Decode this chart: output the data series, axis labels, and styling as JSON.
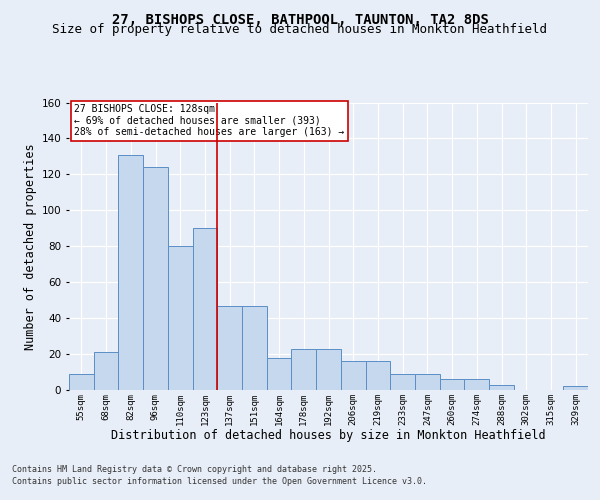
{
  "title1": "27, BISHOPS CLOSE, BATHPOOL, TAUNTON, TA2 8DS",
  "title2": "Size of property relative to detached houses in Monkton Heathfield",
  "xlabel": "Distribution of detached houses by size in Monkton Heathfield",
  "ylabel": "Number of detached properties",
  "categories": [
    "55sqm",
    "68sqm",
    "82sqm",
    "96sqm",
    "110sqm",
    "123sqm",
    "137sqm",
    "151sqm",
    "164sqm",
    "178sqm",
    "192sqm",
    "206sqm",
    "219sqm",
    "233sqm",
    "247sqm",
    "260sqm",
    "274sqm",
    "288sqm",
    "302sqm",
    "315sqm",
    "329sqm"
  ],
  "values": [
    9,
    21,
    131,
    124,
    80,
    90,
    47,
    47,
    18,
    23,
    23,
    16,
    16,
    9,
    9,
    6,
    6,
    3,
    0,
    0,
    2
  ],
  "bar_color": "#c5d8ed",
  "bar_edge_color": "#5b8ec7",
  "vline_x": 5.5,
  "vline_color": "#cc0000",
  "annotation_text": "27 BISHOPS CLOSE: 128sqm\n← 69% of detached houses are smaller (393)\n28% of semi-detached houses are larger (163) →",
  "annotation_box_color": "#ffffff",
  "annotation_box_edge_color": "#cc0000",
  "footer1": "Contains HM Land Registry data © Crown copyright and database right 2025.",
  "footer2": "Contains public sector information licensed under the Open Government Licence v3.0.",
  "bg_color": "#e8eef7",
  "plot_bg_color": "#e8eef7",
  "ylim": [
    0,
    160
  ],
  "yticks": [
    0,
    20,
    40,
    60,
    80,
    100,
    120,
    140,
    160
  ],
  "grid_color": "#ffffff",
  "title1_fontsize": 10,
  "title2_fontsize": 9,
  "xlabel_fontsize": 8.5,
  "ylabel_fontsize": 8.5
}
